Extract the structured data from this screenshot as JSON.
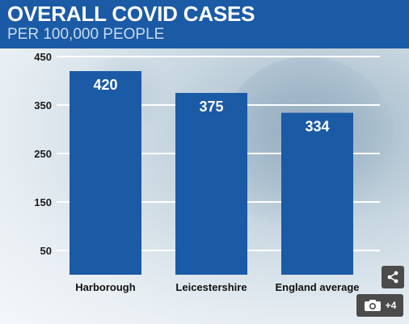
{
  "header": {
    "title": "OVERALL COVID CASES",
    "subtitle": "PER 100,000 PEOPLE"
  },
  "colors": {
    "header_background": "#1b5aa5",
    "bar": "#1b5aa5",
    "bar_label": "#ffffff",
    "gridline": "#ffffff",
    "overlay_button": "#4b4b4b"
  },
  "chart_data": {
    "type": "bar",
    "title": "OVERALL COVID CASES",
    "subtitle": "PER 100,000 PEOPLE",
    "categories": [
      "Harborough",
      "Leicestershire",
      "England average"
    ],
    "values": [
      420,
      375,
      334
    ],
    "value_labels": [
      "420",
      "375",
      "334"
    ],
    "yticks": [
      50,
      150,
      250,
      350,
      450
    ],
    "ytick_labels": [
      "50",
      "150",
      "250",
      "350",
      "450"
    ],
    "ylim": [
      0,
      450
    ],
    "xlabel": "",
    "ylabel": "",
    "grid": true,
    "legend": "none"
  },
  "overlay": {
    "share_icon": "share-icon",
    "gallery_icon": "camera-icon",
    "gallery_count": "+4"
  }
}
